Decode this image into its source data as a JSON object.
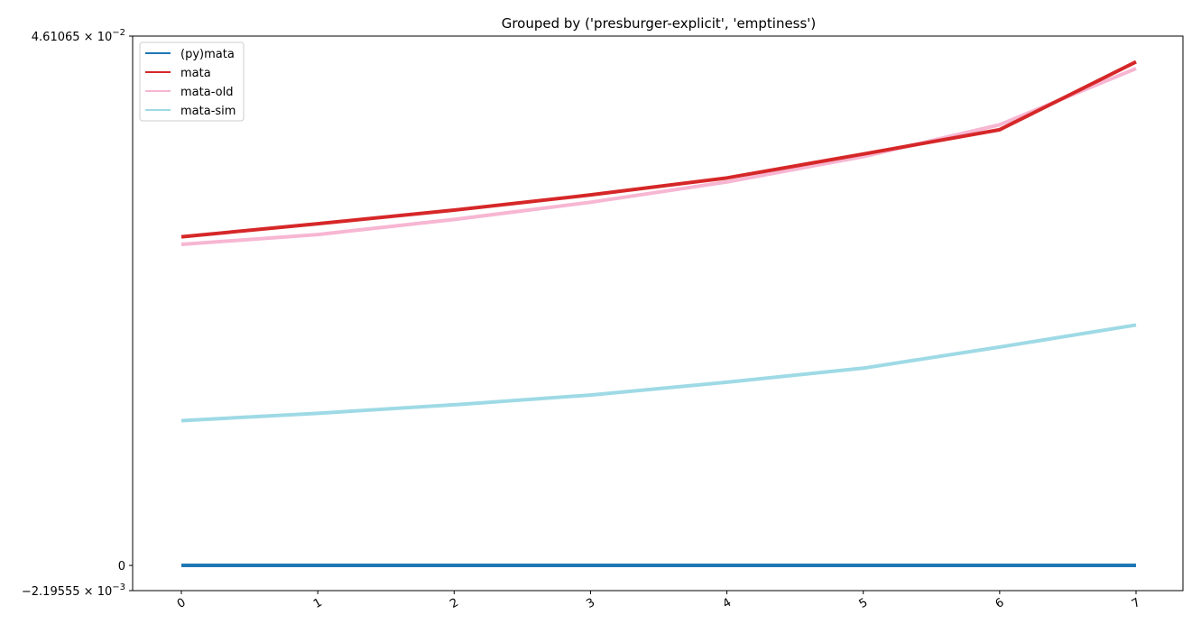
{
  "chart_data": {
    "type": "line",
    "title": "Grouped by ('presburger-explicit', 'emptiness')",
    "xlabel": "",
    "ylabel": "",
    "x": [
      0,
      1,
      2,
      3,
      4,
      5,
      6,
      7
    ],
    "x_tick_labels": [
      "0",
      "1",
      "2",
      "3",
      "4",
      "5",
      "6",
      "7"
    ],
    "ylim": [
      -0.00219555,
      0.0461065
    ],
    "y_ticks": [
      {
        "value": -0.00219555,
        "mantissa": "−2.19555",
        "exponent": "−3"
      },
      {
        "value": 0,
        "label": "0"
      },
      {
        "value": 0.0461065,
        "mantissa": "4.61065",
        "exponent": "−2"
      }
    ],
    "legend_position": "top-left",
    "grid": false,
    "series": [
      {
        "name": "(py)mata",
        "color": "#1f77b4",
        "values": [
          0,
          0,
          0,
          0,
          0,
          0,
          0,
          0
        ]
      },
      {
        "name": "mata",
        "color": "#d62728",
        "values": [
          0.02862,
          0.02976,
          0.03095,
          0.03227,
          0.03375,
          0.03583,
          0.03795,
          0.04386
        ]
      },
      {
        "name": "mata-old",
        "color": "#f7b6d2",
        "values": [
          0.02796,
          0.02882,
          0.03013,
          0.03163,
          0.0334,
          0.03561,
          0.03838,
          0.04328
        ]
      },
      {
        "name": "mata-sim",
        "color": "#9edae5",
        "values": [
          0.01261,
          0.01325,
          0.01399,
          0.01484,
          0.01596,
          0.01718,
          0.01902,
          0.02094
        ]
      }
    ]
  }
}
